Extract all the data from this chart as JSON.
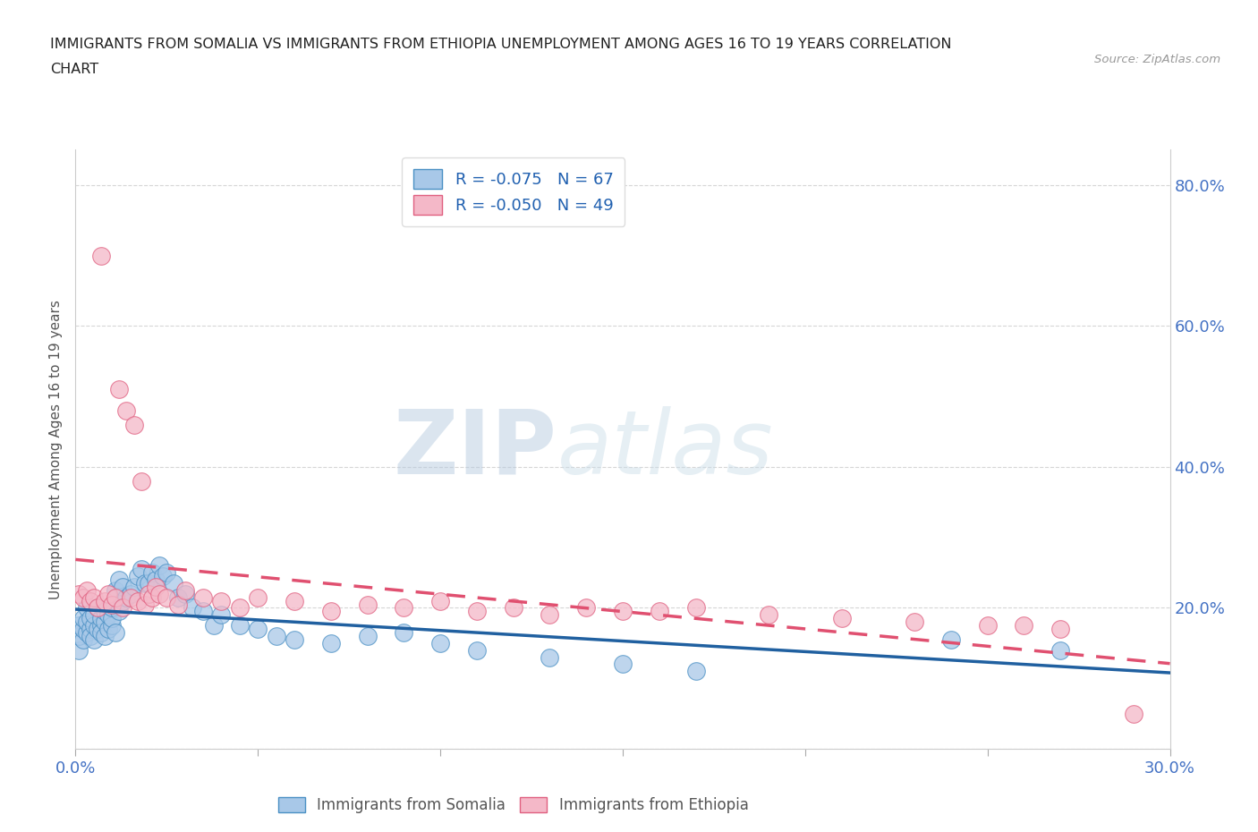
{
  "title_line1": "IMMIGRANTS FROM SOMALIA VS IMMIGRANTS FROM ETHIOPIA UNEMPLOYMENT AMONG AGES 16 TO 19 YEARS CORRELATION",
  "title_line2": "CHART",
  "source": "Source: ZipAtlas.com",
  "ylabel": "Unemployment Among Ages 16 to 19 years",
  "xlim": [
    0.0,
    0.3
  ],
  "ylim": [
    0.0,
    0.85
  ],
  "x_ticks": [
    0.0,
    0.05,
    0.1,
    0.15,
    0.2,
    0.25,
    0.3
  ],
  "x_tick_labels": [
    "0.0%",
    "",
    "",
    "",
    "",
    "",
    "30.0%"
  ],
  "y_ticks": [
    0.0,
    0.2,
    0.4,
    0.6,
    0.8
  ],
  "y_tick_labels": [
    "",
    "20.0%",
    "40.0%",
    "60.0%",
    "80.0%"
  ],
  "somalia_color": "#a8c8e8",
  "ethiopia_color": "#f4b8c8",
  "somalia_edge_color": "#4a90c4",
  "ethiopia_edge_color": "#e06080",
  "somalia_line_color": "#2060a0",
  "ethiopia_line_color": "#e05070",
  "somalia_R": -0.075,
  "somalia_N": 67,
  "ethiopia_R": -0.05,
  "ethiopia_N": 49,
  "watermark_zip": "ZIP",
  "watermark_atlas": "atlas",
  "somalia_x": [
    0.001,
    0.001,
    0.001,
    0.002,
    0.002,
    0.002,
    0.003,
    0.003,
    0.003,
    0.004,
    0.004,
    0.004,
    0.005,
    0.005,
    0.005,
    0.006,
    0.006,
    0.007,
    0.007,
    0.007,
    0.008,
    0.008,
    0.008,
    0.009,
    0.009,
    0.01,
    0.01,
    0.01,
    0.011,
    0.011,
    0.012,
    0.012,
    0.013,
    0.013,
    0.014,
    0.015,
    0.016,
    0.017,
    0.018,
    0.019,
    0.02,
    0.021,
    0.022,
    0.023,
    0.024,
    0.025,
    0.027,
    0.028,
    0.03,
    0.032,
    0.035,
    0.038,
    0.04,
    0.045,
    0.05,
    0.055,
    0.06,
    0.07,
    0.08,
    0.09,
    0.1,
    0.11,
    0.13,
    0.15,
    0.17,
    0.24,
    0.27
  ],
  "somalia_y": [
    0.14,
    0.16,
    0.175,
    0.155,
    0.17,
    0.185,
    0.165,
    0.18,
    0.2,
    0.17,
    0.185,
    0.16,
    0.175,
    0.19,
    0.155,
    0.17,
    0.2,
    0.175,
    0.185,
    0.165,
    0.18,
    0.16,
    0.195,
    0.17,
    0.19,
    0.175,
    0.185,
    0.2,
    0.165,
    0.225,
    0.195,
    0.24,
    0.21,
    0.23,
    0.215,
    0.22,
    0.23,
    0.245,
    0.255,
    0.235,
    0.235,
    0.25,
    0.24,
    0.26,
    0.245,
    0.25,
    0.235,
    0.215,
    0.22,
    0.2,
    0.195,
    0.175,
    0.19,
    0.175,
    0.17,
    0.16,
    0.155,
    0.15,
    0.16,
    0.165,
    0.15,
    0.14,
    0.13,
    0.12,
    0.11,
    0.155,
    0.14
  ],
  "ethiopia_x": [
    0.001,
    0.002,
    0.003,
    0.004,
    0.005,
    0.006,
    0.007,
    0.008,
    0.009,
    0.01,
    0.011,
    0.012,
    0.013,
    0.014,
    0.015,
    0.016,
    0.017,
    0.018,
    0.019,
    0.02,
    0.021,
    0.022,
    0.023,
    0.025,
    0.028,
    0.03,
    0.035,
    0.04,
    0.045,
    0.05,
    0.06,
    0.07,
    0.08,
    0.09,
    0.1,
    0.11,
    0.12,
    0.13,
    0.14,
    0.15,
    0.16,
    0.17,
    0.19,
    0.21,
    0.23,
    0.25,
    0.26,
    0.27,
    0.29
  ],
  "ethiopia_y": [
    0.22,
    0.215,
    0.225,
    0.21,
    0.215,
    0.2,
    0.7,
    0.21,
    0.22,
    0.205,
    0.215,
    0.51,
    0.2,
    0.48,
    0.215,
    0.46,
    0.21,
    0.38,
    0.205,
    0.22,
    0.215,
    0.23,
    0.22,
    0.215,
    0.205,
    0.225,
    0.215,
    0.21,
    0.2,
    0.215,
    0.21,
    0.195,
    0.205,
    0.2,
    0.21,
    0.195,
    0.2,
    0.19,
    0.2,
    0.195,
    0.195,
    0.2,
    0.19,
    0.185,
    0.18,
    0.175,
    0.175,
    0.17,
    0.05
  ]
}
